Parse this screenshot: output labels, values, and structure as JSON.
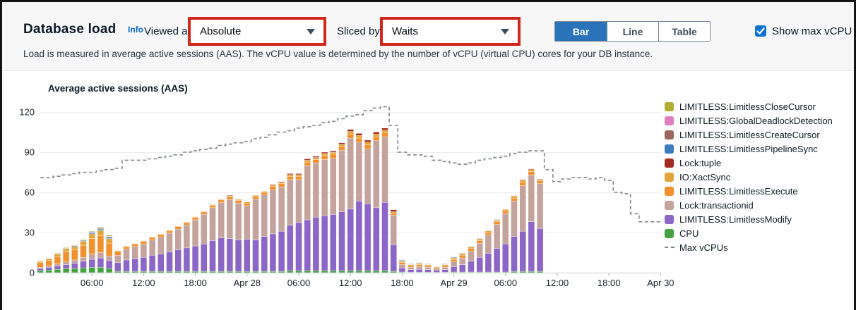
{
  "header": {
    "title": "Database load",
    "info_label": "Info",
    "viewed_as_label": "Viewed as",
    "viewed_as_value": "Absolute",
    "sliced_by_label": "Sliced by",
    "sliced_by_value": "Waits",
    "view_toggle": [
      "Bar",
      "Line",
      "Table"
    ],
    "view_selected": "Bar",
    "show_max_vcpu_label": "Show max vCPU",
    "show_max_vcpu_checked": true,
    "description": "Load is measured in average active sessions (AAS). The vCPU value is determined by the number of vCPU (virtual CPU) cores for your DB instance."
  },
  "colors": {
    "annotation_red": "#d1261b",
    "selected_toggle_blue": "#2a73b9",
    "checkbox_blue": "#0b72d3",
    "info_link_blue": "#0b6bcb",
    "max_vcpus_gray": "#82878e"
  },
  "chart_data": {
    "type": "bar",
    "stacked": true,
    "title": "Average active sessions (AAS)",
    "ylabel": "",
    "xlabel": "",
    "ylim": [
      0,
      130
    ],
    "yticks": [
      0,
      30,
      60,
      90,
      120
    ],
    "x_unit": "hours from Apr 27 00:00",
    "hours_total": 72,
    "bar_hours_start": 0,
    "xticks": [
      {
        "hour": 6,
        "label": "06:00"
      },
      {
        "hour": 12,
        "label": "12:00"
      },
      {
        "hour": 18,
        "label": "18:00"
      },
      {
        "hour": 24,
        "label": "Apr 28"
      },
      {
        "hour": 30,
        "label": "06:00"
      },
      {
        "hour": 36,
        "label": "12:00"
      },
      {
        "hour": 42,
        "label": "18:00"
      },
      {
        "hour": 48,
        "label": "Apr 29"
      },
      {
        "hour": 54,
        "label": "06:00"
      },
      {
        "hour": 60,
        "label": "12:00"
      },
      {
        "hour": 66,
        "label": "18:00"
      },
      {
        "hour": 72,
        "label": "Apr 30"
      }
    ],
    "series": [
      {
        "name": "CPU",
        "color": "#44a23f",
        "values": [
          1.5,
          2,
          2.5,
          3,
          3,
          3.5,
          4,
          4,
          3,
          1,
          1,
          1,
          1,
          1,
          1,
          1,
          1,
          1,
          1,
          1,
          1,
          1,
          1,
          1,
          1,
          1,
          1,
          1,
          1,
          1.5,
          1.5,
          1.5,
          1.5,
          1.5,
          1.5,
          1.5,
          1.5,
          1.5,
          1.5,
          1.5,
          1.5,
          1,
          0.5,
          0.3,
          0.3,
          0.3,
          0.2,
          0.3,
          0.5,
          0.5,
          0.5,
          0.5,
          0.5,
          0.5,
          0.5,
          1,
          1,
          1,
          1
        ]
      },
      {
        "name": "LIMITLESS:LimitlessModify",
        "color": "#8c66c6",
        "values": [
          1.5,
          2,
          2.5,
          3,
          4,
          5,
          6,
          7,
          6,
          6.5,
          8.5,
          9.5,
          10.5,
          12,
          13,
          14.5,
          16,
          17.5,
          19,
          20.5,
          23,
          25,
          24.5,
          23.5,
          24,
          23.5,
          26,
          28,
          30,
          34,
          36,
          38,
          40,
          41,
          42,
          44,
          46,
          52,
          50,
          47,
          51,
          20,
          3,
          2,
          2.3,
          2,
          1.5,
          2,
          4,
          5.5,
          8,
          11,
          14,
          17.5,
          21,
          26,
          30,
          37,
          32
        ]
      },
      {
        "name": "Lock:transactionid",
        "color": "#c4a39d",
        "values": [
          1,
          1,
          1.5,
          2,
          2.5,
          3,
          4,
          4,
          3.5,
          5.5,
          8,
          9,
          10,
          11.5,
          12.5,
          14,
          15.5,
          17,
          19.5,
          22,
          24.5,
          26.5,
          29,
          27.5,
          25,
          30.5,
          31,
          33,
          33,
          34,
          32,
          40.5,
          40.5,
          42,
          42,
          46,
          53,
          44,
          41,
          50,
          49,
          22,
          2.5,
          1.7,
          2,
          1.7,
          1.2,
          1.7,
          3.5,
          5,
          7.5,
          10.5,
          13.5,
          18,
          22.5,
          26.5,
          34,
          35,
          33.5
        ]
      },
      {
        "name": "LIMITLESS:LimitlessExecute",
        "color": "#f0912d",
        "values": [
          3.5,
          4,
          5.5,
          7.5,
          7.5,
          9,
          11.5,
          12.5,
          9.5,
          2.5,
          1.8,
          1.8,
          1.8,
          1.8,
          1.8,
          1.8,
          1.8,
          1.8,
          1.8,
          1.8,
          1.8,
          1.8,
          2,
          2,
          2,
          2,
          2,
          2.5,
          2.5,
          2.5,
          2.5,
          2.5,
          2.5,
          3,
          3,
          3,
          3,
          3,
          3,
          3,
          3,
          1.5,
          1.5,
          1.2,
          1.4,
          1.2,
          0.9,
          1.2,
          1.8,
          2,
          2,
          2,
          2,
          2,
          2,
          2.2,
          2.5,
          2.5,
          2
        ]
      },
      {
        "name": "IO:XactSync",
        "color": "#e3a63b",
        "values": [
          1,
          1.5,
          2,
          2.5,
          2.5,
          3,
          3.5,
          4,
          3.5,
          1,
          0.5,
          0.5,
          0.5,
          0.5,
          0.5,
          0.5,
          0.5,
          0.5,
          0.5,
          0.5,
          0.5,
          0.5,
          0.8,
          0.8,
          0.8,
          0.8,
          0.8,
          1,
          1,
          1.2,
          1.2,
          1.5,
          1.5,
          1.5,
          1.5,
          1.5,
          2,
          2,
          2,
          2,
          2,
          1,
          1,
          0.8,
          0.9,
          0.8,
          0.6,
          0.8,
          1.2,
          1.2,
          1.2,
          1.2,
          1.2,
          1.2,
          1.2,
          1.5,
          1.5,
          1.5,
          1
        ]
      },
      {
        "name": "Lock:tuple",
        "color": "#a42a21",
        "values": [
          0,
          0,
          0,
          0,
          0,
          0,
          0,
          0,
          0,
          0,
          0,
          0,
          0,
          0,
          0,
          0,
          0,
          0,
          0,
          0,
          0,
          0,
          0.5,
          0.2,
          0.2,
          0.2,
          0.2,
          0.5,
          0.5,
          0.8,
          0.8,
          1,
          1,
          1,
          1,
          1,
          1.5,
          1.5,
          1.5,
          1.5,
          1.5,
          1.5,
          0.3,
          0.2,
          0.2,
          0.2,
          0.1,
          0.2,
          0.3,
          0.3,
          0.3,
          0.3,
          0.3,
          0.3,
          0.3,
          0.3,
          0.5,
          0.6,
          0.5
        ]
      },
      {
        "name": "LIMITLESS:LimitlessPipelineSync",
        "color": "#3d7dbf",
        "values": [
          0.2,
          0.2,
          0.4,
          0.4,
          0.6,
          0.6,
          0.8,
          1,
          1,
          0.2,
          0,
          0,
          0,
          0,
          0,
          0,
          0,
          0,
          0,
          0,
          0,
          0,
          0,
          0,
          0,
          0,
          0,
          0,
          0,
          0,
          0,
          0,
          0,
          0,
          0,
          0,
          0,
          0,
          0,
          0,
          0,
          0,
          0.5,
          0.4,
          0.4,
          0.4,
          0.3,
          0.4,
          0.4,
          0.3,
          0.3,
          0.3,
          0.3,
          0.3,
          0.3,
          0.3,
          0.3,
          0.2,
          0
        ]
      },
      {
        "name": "LIMITLESS:LimitlessCreateCursor",
        "color": "#99675e",
        "values": [
          0.2,
          0.2,
          0.3,
          0.3,
          0.4,
          0.4,
          0.5,
          0.5,
          0.5,
          0.2,
          0,
          0,
          0,
          0,
          0,
          0,
          0,
          0,
          0,
          0,
          0,
          0,
          0,
          0,
          0,
          0,
          0,
          0,
          0,
          0,
          0,
          0,
          0,
          0,
          0,
          0,
          0,
          0,
          0,
          0,
          0,
          0.3,
          0.4,
          0.2,
          0.3,
          0.2,
          0.1,
          0.2,
          0.2,
          0.1,
          0.1,
          0.1,
          0.1,
          0.1,
          0.1,
          0.1,
          0.1,
          0.1,
          0
        ]
      },
      {
        "name": "LIMITLESS:GlobalDeadlockDetection",
        "color": "#df7fc1",
        "values": [
          0,
          0,
          0,
          0,
          0.2,
          0.2,
          0.2,
          0.3,
          0.3,
          0,
          0,
          0,
          0,
          0,
          0,
          0,
          0,
          0,
          0,
          0,
          0,
          0,
          0,
          0,
          0,
          0,
          0,
          0,
          0,
          0,
          0,
          0,
          0,
          0,
          0,
          0,
          0,
          0,
          0,
          0,
          0,
          0,
          0.1,
          0.1,
          0.1,
          0.1,
          0.1,
          0.1,
          0.1,
          0,
          0,
          0,
          0,
          0,
          0,
          0,
          0,
          0,
          0
        ]
      },
      {
        "name": "LIMITLESS:LimitlessCloseCursor",
        "color": "#b1ad33",
        "values": [
          0.1,
          0.1,
          0.3,
          0.3,
          0.3,
          0.3,
          0.5,
          0.7,
          0.7,
          0.1,
          0,
          0,
          0,
          0,
          0,
          0,
          0,
          0,
          0,
          0,
          0,
          0,
          0,
          0,
          0,
          0,
          0,
          0,
          0,
          0,
          0,
          0,
          0,
          0,
          0,
          0,
          0,
          0,
          0,
          0,
          0,
          0.2,
          0.2,
          0.1,
          0.1,
          0.1,
          0.1,
          0.1,
          0.1,
          0.1,
          0.1,
          0.1,
          0.1,
          0.1,
          0.1,
          0.1,
          0.1,
          0.1,
          0.1
        ]
      }
    ],
    "max_vcpus": {
      "name": "Max vCPUs",
      "color": "#82878e",
      "style": "dashed-step",
      "values": [
        71,
        71,
        72,
        73,
        74,
        75,
        75,
        76,
        77,
        78,
        84,
        84,
        84,
        85,
        86,
        87,
        88,
        90,
        91,
        92,
        93,
        95,
        96,
        97,
        98,
        100,
        101,
        103,
        105,
        106,
        108,
        109,
        110,
        112,
        113,
        115,
        117,
        118,
        121,
        123,
        124,
        110,
        90,
        88,
        88,
        87,
        84,
        83,
        82,
        81,
        82,
        84,
        85,
        86,
        87,
        89,
        90,
        91,
        91,
        77,
        68,
        70,
        71,
        71,
        70,
        71,
        69,
        60,
        59,
        44,
        38,
        38,
        38
      ]
    },
    "legend": [
      {
        "name": "LIMITLESS:LimitlessCloseCursor",
        "color": "#b1ad33",
        "dash": false
      },
      {
        "name": "LIMITLESS:GlobalDeadlockDetection",
        "color": "#df7fc1",
        "dash": false
      },
      {
        "name": "LIMITLESS:LimitlessCreateCursor",
        "color": "#99675e",
        "dash": false
      },
      {
        "name": "LIMITLESS:LimitlessPipelineSync",
        "color": "#3d7dbf",
        "dash": false
      },
      {
        "name": "Lock:tuple",
        "color": "#a42a21",
        "dash": false
      },
      {
        "name": "IO:XactSync",
        "color": "#e3a63b",
        "dash": false
      },
      {
        "name": "LIMITLESS:LimitlessExecute",
        "color": "#f0912d",
        "dash": false
      },
      {
        "name": "Lock:transactionid",
        "color": "#c4a39d",
        "dash": false
      },
      {
        "name": "LIMITLESS:LimitlessModify",
        "color": "#8c66c6",
        "dash": false
      },
      {
        "name": "CPU",
        "color": "#44a23f",
        "dash": false
      },
      {
        "name": "Max vCPUs",
        "color": "#82878e",
        "dash": true
      }
    ],
    "legend_position": "right",
    "grid": true
  }
}
